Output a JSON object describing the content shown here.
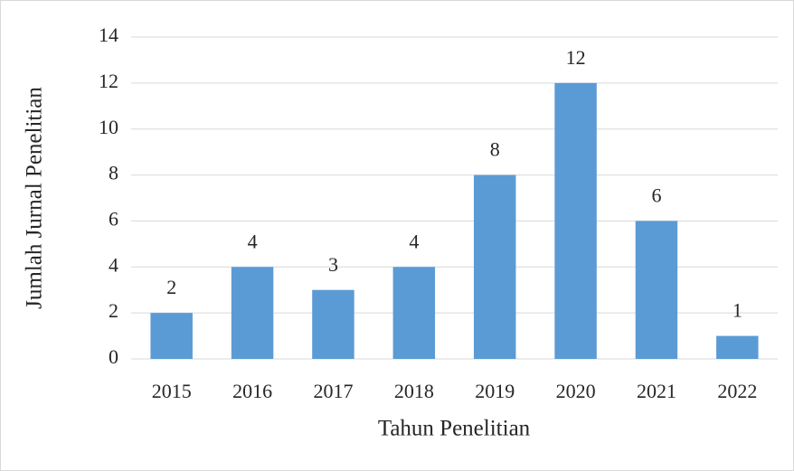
{
  "chart_data": {
    "type": "bar",
    "x_label": "Tahun Penelitian",
    "y_label": "Jumlah Jurnal Penelitian",
    "categories": [
      "2015",
      "2016",
      "2017",
      "2018",
      "2019",
      "2020",
      "2021",
      "2022"
    ],
    "values": [
      2,
      4,
      3,
      4,
      8,
      12,
      6,
      1
    ],
    "color": "#5b9bd5",
    "ylim": [
      0,
      14
    ],
    "yticks": [
      0,
      2,
      4,
      6,
      8,
      10,
      12,
      14
    ],
    "grid": true,
    "data_labels": true
  }
}
